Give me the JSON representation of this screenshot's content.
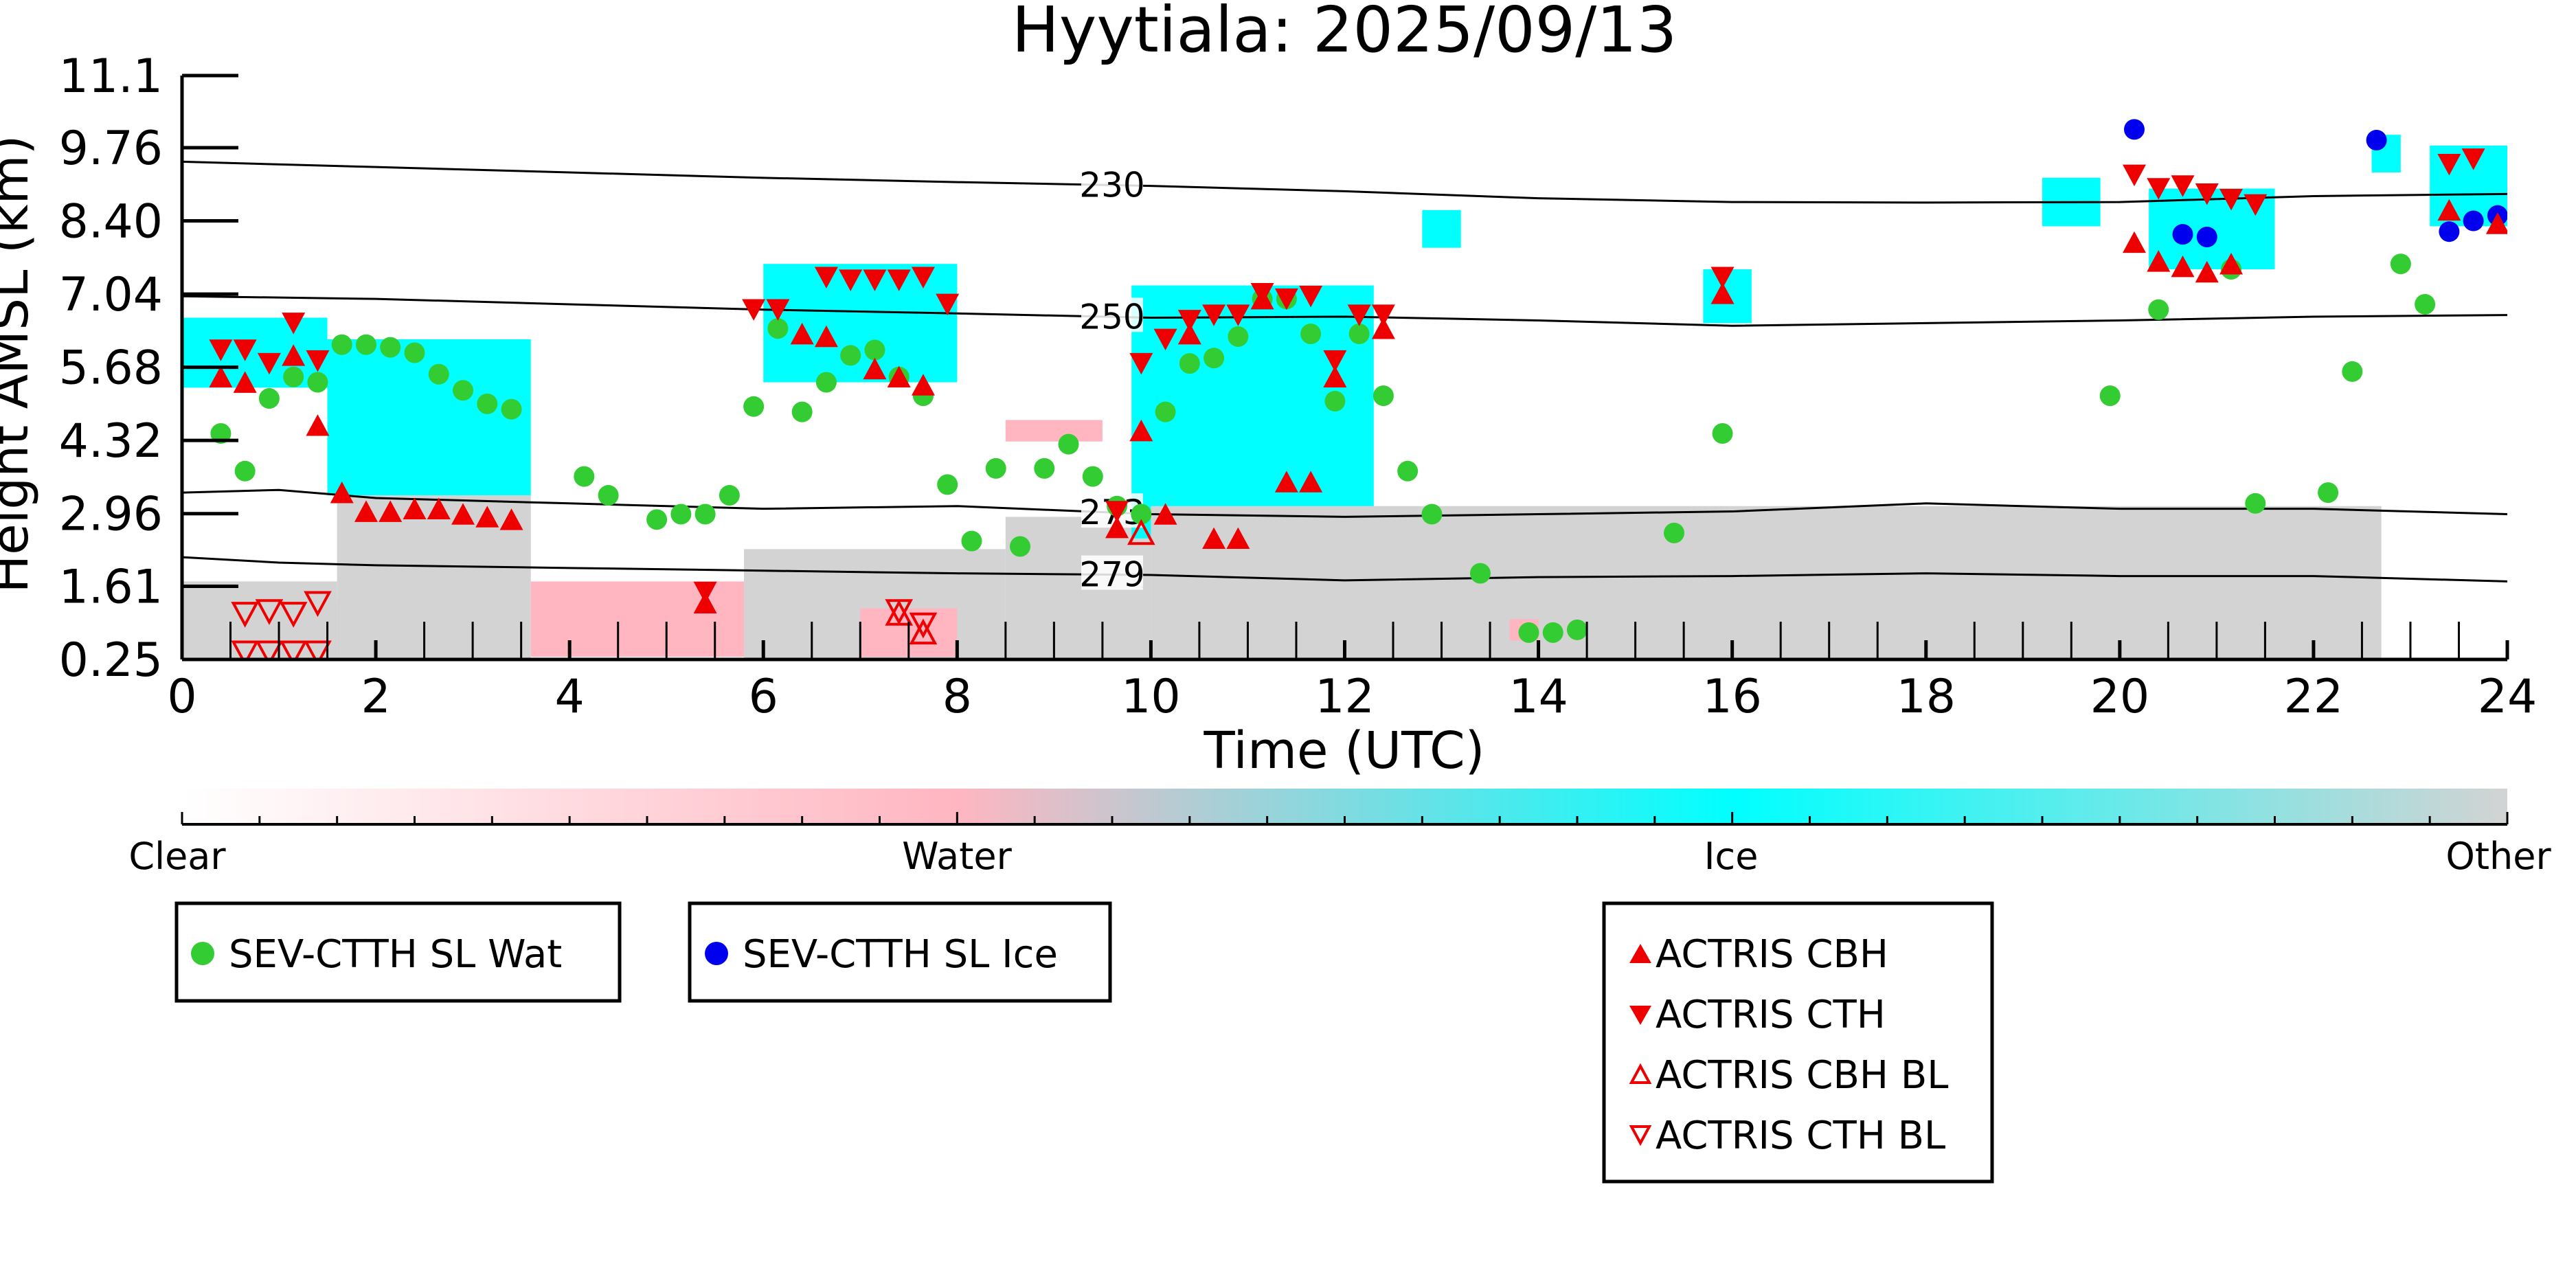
{
  "chart_data": {
    "type": "scatter",
    "title": "Hyytiala: 2025/09/13",
    "xlabel": "Time (UTC)",
    "ylabel": "Height AMSL (km)",
    "xlim": [
      0,
      24
    ],
    "ylim": [
      0.25,
      11.1
    ],
    "x_ticks": [
      0,
      2,
      4,
      6,
      8,
      10,
      12,
      14,
      16,
      18,
      20,
      22,
      24
    ],
    "x_tick_labels": [
      "0",
      "2",
      "4",
      "6",
      "8",
      "10",
      "12",
      "14",
      "16",
      "18",
      "20",
      "22",
      "24"
    ],
    "y_ticks": [
      0.25,
      1.61,
      2.96,
      4.32,
      5.68,
      7.04,
      8.4,
      9.76,
      11.1
    ],
    "y_tick_labels": [
      "0.25",
      "1.61",
      "2.96",
      "4.32",
      "5.68",
      "7.04",
      "8.40",
      "9.76",
      "11.1"
    ],
    "grid": false,
    "background_classes": {
      "colorbar_labels": [
        "Clear",
        "Water",
        "Ice",
        "Other"
      ],
      "colors": {
        "clear": "#ffffff",
        "water": "#ffb6c1",
        "ice": "#00ffff",
        "other": "#d3d3d3"
      },
      "patches": [
        {
          "class": "water",
          "x": [
            0.0,
            1.6
          ],
          "y": [
            0.25,
            1.3
          ]
        },
        {
          "class": "other",
          "x": [
            0.0,
            1.6
          ],
          "y": [
            0.25,
            1.7
          ]
        },
        {
          "class": "other",
          "x": [
            1.6,
            3.6
          ],
          "y": [
            0.25,
            3.3
          ]
        },
        {
          "class": "ice",
          "x": [
            1.5,
            3.6
          ],
          "y": [
            3.3,
            6.2
          ]
        },
        {
          "class": "ice",
          "x": [
            0.0,
            1.5
          ],
          "y": [
            5.3,
            6.6
          ]
        },
        {
          "class": "water",
          "x": [
            3.6,
            6.0
          ],
          "y": [
            0.3,
            1.7
          ]
        },
        {
          "class": "other",
          "x": [
            5.8,
            8.5
          ],
          "y": [
            0.25,
            2.3
          ]
        },
        {
          "class": "water",
          "x": [
            7.0,
            8.0
          ],
          "y": [
            0.3,
            1.2
          ]
        },
        {
          "class": "ice",
          "x": [
            6.0,
            8.0
          ],
          "y": [
            5.4,
            7.6
          ]
        },
        {
          "class": "water",
          "x": [
            8.5,
            9.5
          ],
          "y": [
            4.3,
            4.7
          ]
        },
        {
          "class": "other",
          "x": [
            8.5,
            10.0
          ],
          "y": [
            0.25,
            2.9
          ]
        },
        {
          "class": "ice",
          "x": [
            9.8,
            12.3
          ],
          "y": [
            2.5,
            7.2
          ]
        },
        {
          "class": "other",
          "x": [
            10.0,
            22.7
          ],
          "y": [
            0.25,
            3.1
          ]
        },
        {
          "class": "water",
          "x": [
            13.7,
            14.0
          ],
          "y": [
            0.6,
            1.0
          ]
        },
        {
          "class": "ice",
          "x": [
            15.7,
            16.2
          ],
          "y": [
            6.5,
            7.5
          ]
        },
        {
          "class": "ice",
          "x": [
            12.8,
            13.2
          ],
          "y": [
            7.9,
            8.6
          ]
        },
        {
          "class": "ice",
          "x": [
            19.2,
            19.8
          ],
          "y": [
            8.3,
            9.2
          ]
        },
        {
          "class": "ice",
          "x": [
            20.3,
            21.6
          ],
          "y": [
            7.5,
            9.0
          ]
        },
        {
          "class": "ice",
          "x": [
            22.6,
            22.9
          ],
          "y": [
            9.3,
            10.0
          ]
        },
        {
          "class": "ice",
          "x": [
            23.2,
            24.0
          ],
          "y": [
            8.3,
            9.8
          ]
        }
      ]
    },
    "isotherms": [
      {
        "label": "230",
        "x": [
          0,
          2,
          4,
          6,
          8,
          10,
          12,
          14,
          16,
          18,
          20,
          22,
          24
        ],
        "y": [
          9.5,
          9.4,
          9.3,
          9.2,
          9.12,
          9.05,
          8.95,
          8.82,
          8.75,
          8.74,
          8.75,
          8.86,
          8.9
        ]
      },
      {
        "label": "250",
        "x": [
          0,
          2,
          4,
          6,
          8,
          10,
          12,
          14,
          16,
          18,
          20,
          22,
          24
        ],
        "y": [
          7.0,
          6.95,
          6.85,
          6.75,
          6.68,
          6.6,
          6.62,
          6.55,
          6.45,
          6.5,
          6.55,
          6.62,
          6.65
        ]
      },
      {
        "label": "273",
        "x": [
          0,
          1,
          2,
          4,
          6,
          8,
          10,
          12,
          14,
          16,
          18,
          20,
          22,
          24
        ],
        "y": [
          3.35,
          3.4,
          3.25,
          3.15,
          3.05,
          3.1,
          2.95,
          2.9,
          2.95,
          3.0,
          3.15,
          3.05,
          3.05,
          2.95
        ]
      },
      {
        "label": "279",
        "x": [
          0,
          1,
          2,
          4,
          6,
          8,
          10,
          12,
          14,
          16,
          18,
          20,
          22,
          24
        ],
        "y": [
          2.15,
          2.05,
          2.0,
          1.95,
          1.9,
          1.85,
          1.82,
          1.72,
          1.78,
          1.8,
          1.85,
          1.8,
          1.8,
          1.7
        ]
      }
    ],
    "series": [
      {
        "name": "SEV-CTTH SL Wat",
        "marker": "circle",
        "color": "#33cc33",
        "x": [
          0.4,
          0.65,
          0.9,
          1.15,
          1.4,
          1.65,
          1.9,
          2.15,
          2.4,
          2.65,
          2.9,
          3.15,
          3.4,
          4.15,
          4.4,
          4.9,
          5.15,
          5.4,
          5.65,
          5.9,
          6.15,
          6.4,
          6.65,
          6.9,
          7.15,
          7.4,
          7.65,
          7.9,
          8.15,
          8.4,
          8.65,
          8.9,
          9.15,
          9.4,
          9.65,
          9.9,
          10.15,
          10.4,
          10.65,
          10.9,
          11.15,
          11.4,
          11.65,
          11.9,
          12.15,
          12.4,
          12.65,
          12.9,
          13.4,
          13.9,
          14.15,
          14.4,
          15.4,
          15.9,
          19.9,
          20.4,
          21.15,
          21.4,
          22.15,
          22.4,
          22.9,
          23.15
        ],
        "y": [
          4.45,
          3.75,
          5.1,
          5.5,
          5.4,
          6.1,
          6.1,
          6.05,
          5.95,
          5.55,
          5.25,
          5.0,
          4.9,
          3.65,
          3.3,
          2.85,
          2.95,
          2.95,
          3.3,
          4.95,
          6.4,
          4.85,
          5.4,
          5.9,
          6.0,
          5.5,
          5.15,
          3.5,
          2.45,
          3.8,
          2.35,
          3.8,
          4.25,
          3.65,
          3.1,
          2.95,
          4.85,
          5.75,
          5.85,
          6.25,
          6.95,
          6.95,
          6.3,
          5.05,
          6.3,
          5.15,
          3.75,
          2.95,
          1.85,
          0.75,
          0.75,
          0.8,
          2.6,
          4.45,
          5.15,
          6.75,
          7.5,
          3.15,
          3.35,
          5.6,
          7.6,
          6.85
        ]
      },
      {
        "name": "SEV-CTTH SL Ice",
        "marker": "circle",
        "color": "#0000ee",
        "x": [
          20.15,
          20.65,
          20.9,
          22.65,
          23.4,
          23.65,
          23.9
        ],
        "y": [
          10.1,
          8.15,
          8.1,
          9.9,
          8.2,
          8.4,
          8.5
        ]
      },
      {
        "name": "ACTRIS CBH",
        "marker": "triangle-up",
        "color": "#ee0000",
        "x": [
          0.4,
          0.65,
          1.15,
          1.4,
          1.65,
          1.9,
          2.15,
          2.4,
          2.65,
          2.9,
          3.15,
          3.4,
          5.4,
          6.4,
          6.65,
          7.15,
          7.4,
          7.65,
          9.65,
          9.9,
          10.15,
          10.4,
          10.65,
          10.9,
          11.15,
          11.4,
          11.65,
          11.9,
          12.4,
          15.9,
          20.15,
          20.4,
          20.65,
          20.9,
          21.15,
          23.4,
          23.9
        ],
        "y": [
          5.5,
          5.4,
          5.9,
          4.6,
          3.35,
          3.0,
          3.0,
          3.05,
          3.05,
          2.95,
          2.9,
          2.85,
          1.3,
          6.3,
          6.25,
          5.65,
          5.5,
          5.35,
          2.7,
          4.5,
          2.95,
          6.3,
          2.5,
          2.5,
          6.95,
          3.55,
          3.55,
          5.5,
          6.4,
          7.05,
          8.0,
          7.65,
          7.55,
          7.45,
          7.6,
          8.6,
          8.35
        ]
      },
      {
        "name": "ACTRIS CTH",
        "marker": "triangle-down",
        "color": "#ee0000",
        "x": [
          0.4,
          0.65,
          0.9,
          1.15,
          1.4,
          5.4,
          5.9,
          6.15,
          6.65,
          6.9,
          7.15,
          7.4,
          7.65,
          7.9,
          9.65,
          9.9,
          10.15,
          10.4,
          10.65,
          10.9,
          11.15,
          11.4,
          11.65,
          11.9,
          12.15,
          12.4,
          15.9,
          20.15,
          20.4,
          20.65,
          20.9,
          21.15,
          21.4,
          23.4,
          23.65
        ],
        "y": [
          6.0,
          6.0,
          5.75,
          6.5,
          5.8,
          1.5,
          6.75,
          6.75,
          7.35,
          7.3,
          7.3,
          7.3,
          7.35,
          6.85,
          3.0,
          5.75,
          6.2,
          6.55,
          6.65,
          6.65,
          7.05,
          6.95,
          7.0,
          5.8,
          6.65,
          6.65,
          7.35,
          9.25,
          9.0,
          9.05,
          8.9,
          8.8,
          8.7,
          9.45,
          9.55
        ]
      },
      {
        "name": "ACTRIS CBH BL",
        "marker": "triangle-up-open",
        "color": "#ee0000",
        "x": [
          7.4,
          7.65,
          9.9
        ],
        "y": [
          1.1,
          0.75,
          2.6
        ]
      },
      {
        "name": "ACTRIS CTH BL",
        "marker": "triangle-down-open",
        "color": "#ee0000",
        "x": [
          0.65,
          0.9,
          1.15,
          1.4,
          0.65,
          0.9,
          1.15,
          1.4,
          7.4,
          7.65
        ],
        "y": [
          1.1,
          1.15,
          1.1,
          1.3,
          0.38,
          0.38,
          0.38,
          0.38,
          1.15,
          0.9
        ]
      }
    ]
  }
}
